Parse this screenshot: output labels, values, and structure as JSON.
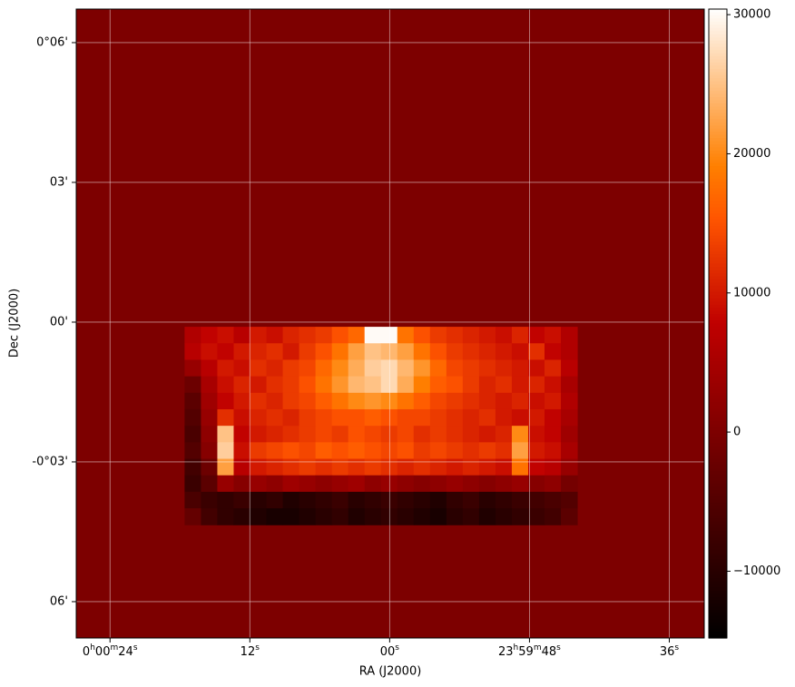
{
  "chart_data": {
    "type": "heatmap",
    "xlabel": "RA (J2000)",
    "ylabel": "Dec (J2000)",
    "xlim": [
      26.9,
      -27.0
    ],
    "ylim": [
      -6.78,
      6.72
    ],
    "xticks": [
      {
        "value": 24,
        "label": "0h00m24s"
      },
      {
        "value": 12,
        "label": "12s"
      },
      {
        "value": 0,
        "label": "00s"
      },
      {
        "value": -12,
        "label": "23h59m48s"
      },
      {
        "value": -24,
        "label": "36s"
      }
    ],
    "yticks": [
      {
        "value": 6,
        "label": "0°06'"
      },
      {
        "value": 3,
        "label": "03'"
      },
      {
        "value": 0,
        "label": "00'"
      },
      {
        "value": -3,
        "label": "-0°03'"
      },
      {
        "value": -6,
        "label": "06'"
      }
    ],
    "grid": true,
    "colormap": "gist_heat",
    "clim": [
      -14800,
      30400
    ],
    "cticks": [
      {
        "value": -10000,
        "label": "−10000"
      },
      0,
      10000,
      20000,
      30000
    ],
    "background": 0,
    "x_extent": [
      17.6,
      -16.1
    ],
    "y_extent": [
      -0.1,
      -4.35
    ],
    "z": [
      [
        6000,
        8000,
        9000,
        7000,
        10000,
        9000,
        11000,
        12000,
        13000,
        15000,
        17000,
        30000,
        30000,
        18000,
        15000,
        13000,
        12000,
        11000,
        10000,
        9000,
        11000,
        8000,
        9000,
        6000
      ],
      [
        7000,
        9000,
        8000,
        10000,
        11000,
        12000,
        10000,
        13000,
        15000,
        18000,
        22000,
        25000,
        24000,
        22000,
        18000,
        15000,
        13000,
        12000,
        11000,
        10000,
        9000,
        12000,
        8000,
        6000
      ],
      [
        3000,
        7000,
        10000,
        9000,
        12000,
        11000,
        13000,
        14000,
        17000,
        20000,
        23000,
        26000,
        27000,
        24000,
        21000,
        17000,
        14000,
        13000,
        12000,
        11000,
        10000,
        9000,
        11000,
        7000
      ],
      [
        -2000,
        5000,
        9000,
        11000,
        10000,
        12000,
        13000,
        15000,
        18000,
        21000,
        24000,
        25000,
        27000,
        23000,
        19000,
        16000,
        15000,
        13000,
        11000,
        12000,
        10000,
        11000,
        9000,
        5000
      ],
      [
        -4000,
        4000,
        8000,
        10000,
        12000,
        11000,
        13000,
        14000,
        16000,
        18000,
        20000,
        21000,
        20000,
        18000,
        16000,
        14000,
        13000,
        12000,
        11000,
        10000,
        11000,
        9000,
        10000,
        6000
      ],
      [
        -5000,
        3000,
        12000,
        9000,
        11000,
        12000,
        11000,
        13000,
        14000,
        15000,
        15000,
        16000,
        15000,
        14000,
        14000,
        13000,
        12000,
        11000,
        12000,
        10000,
        9000,
        10000,
        8000,
        5000
      ],
      [
        -6000,
        2000,
        25000,
        8000,
        10000,
        11000,
        12000,
        13000,
        14000,
        13000,
        15000,
        14000,
        13000,
        14000,
        12000,
        13000,
        12000,
        11000,
        10000,
        11000,
        20000,
        9000,
        8000,
        4000
      ],
      [
        -5000,
        1000,
        26000,
        9000,
        13000,
        14000,
        15000,
        14000,
        16000,
        15000,
        16000,
        15000,
        14000,
        15000,
        13000,
        14000,
        13000,
        12000,
        13000,
        12000,
        22000,
        10000,
        9000,
        5000
      ],
      [
        -7000,
        -2000,
        22000,
        7000,
        10000,
        11000,
        12000,
        13000,
        12000,
        13000,
        12000,
        13000,
        12000,
        11000,
        12000,
        11000,
        10000,
        11000,
        10000,
        9000,
        18000,
        8000,
        7000,
        3000
      ],
      [
        -8000,
        -4000,
        3000,
        1000,
        3000,
        2000,
        4000,
        3000,
        2000,
        3000,
        4000,
        2000,
        3000,
        2000,
        1000,
        2000,
        3000,
        2000,
        1000,
        2000,
        3000,
        1000,
        2000,
        -1000
      ],
      [
        -6000,
        -8000,
        -9000,
        -8000,
        -10000,
        -9000,
        -11000,
        -10000,
        -9000,
        -8000,
        -10000,
        -9000,
        -8000,
        -9000,
        -10000,
        -11000,
        -9000,
        -8000,
        -10000,
        -9000,
        -8000,
        -7000,
        -6000,
        -5000
      ],
      [
        -3000,
        -7000,
        -9000,
        -10000,
        -11000,
        -12000,
        -12000,
        -11000,
        -10000,
        -9000,
        -11000,
        -10000,
        -9000,
        -10000,
        -11000,
        -12000,
        -10000,
        -9000,
        -11000,
        -10000,
        -9000,
        -8000,
        -7000,
        -4000
      ]
    ]
  }
}
